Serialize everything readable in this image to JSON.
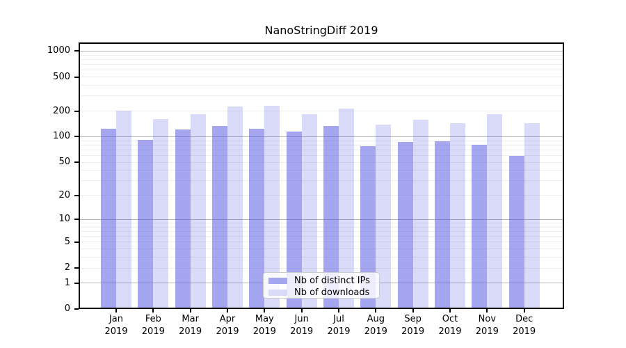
{
  "title": "NanoStringDiff 2019",
  "chart_data": {
    "type": "bar",
    "x_categories": [
      "Jan",
      "Feb",
      "Mar",
      "Apr",
      "May",
      "Jun",
      "Jul",
      "Aug",
      "Sep",
      "Oct",
      "Nov",
      "Dec"
    ],
    "x_year": "2019",
    "series": [
      {
        "name": "Nb of distinct IPs",
        "values": [
          123,
          91,
          121,
          133,
          125,
          116,
          134,
          77,
          87,
          88,
          80,
          60
        ]
      },
      {
        "name": "Nb of downloads",
        "values": [
          201,
          162,
          183,
          226,
          230,
          183,
          215,
          139,
          157,
          143,
          183,
          143
        ]
      }
    ],
    "y_scale": "log1p",
    "y_ticks": [
      0,
      1,
      2,
      5,
      10,
      20,
      50,
      100,
      200,
      500,
      1000
    ],
    "y_range": [
      0,
      1000
    ],
    "grid": "horizontal log minor lines, darker lines at decades",
    "legend_position": "lower center"
  },
  "colors": {
    "ips_bar": "rgba(85,85,226,0.53)",
    "downloads_bar": "rgba(85,85,226,0.22)",
    "ips_swatch": "#a5a5f0",
    "downloads_swatch": "#d9d9f8",
    "grid_minor": "#ededed",
    "grid_major": "#b3b3b3",
    "axis": "#000000",
    "legend_border": "#cccccc",
    "background": "#ffffff"
  }
}
